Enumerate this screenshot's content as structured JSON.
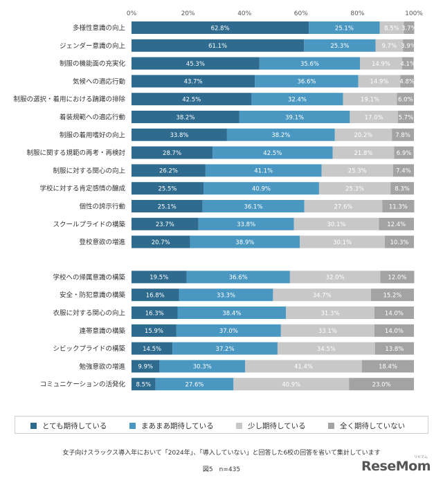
{
  "chart_data": {
    "type": "bar",
    "orientation": "horizontal",
    "stacked": true,
    "percent": true,
    "xlim": [
      0,
      100
    ],
    "x_ticks": [
      "0%",
      "20%",
      "40%",
      "60%",
      "80%",
      "100%"
    ],
    "grid": false,
    "legend_position": "bottom",
    "categories": [
      "多様性意識の向上",
      "ジェンダー意識の向上",
      "制服の機能面の充実化",
      "気候への適応行動",
      "制服の選択・着用における躊躇の排除",
      "着装規範への適応行動",
      "制服の着用嗜好の向上",
      "制服に関する規範の再考・再検討",
      "制服に対する関心の向上",
      "学校に対する肯定感情の醸成",
      "個性の誇示行動",
      "スクールプライドの構築",
      "登校意欲の増進",
      "学校への帰属意識の構築",
      "安全・防犯意識の構築",
      "衣服に対する関心の向上",
      "連帯意識の構築",
      "シビックプライドの構築",
      "勉強意欲の増進",
      "コミュニケーションの活発化"
    ],
    "group_sizes": [
      13,
      7
    ],
    "series": [
      {
        "name": "とても期待している",
        "color": "#2e6b8e",
        "values": [
          62.8,
          61.1,
          45.3,
          43.7,
          42.5,
          38.2,
          33.8,
          28.7,
          26.2,
          25.5,
          25.1,
          23.7,
          20.7,
          19.5,
          16.8,
          16.3,
          15.9,
          14.5,
          9.9,
          8.5
        ],
        "labels": [
          "62.8%",
          "61.1%",
          "45.3%",
          "43.7%",
          "42.5%",
          "38.2%",
          "33.8%",
          "28.7%",
          "26.2%",
          "25.5%",
          "25.1%",
          "23.7%",
          "20.7%",
          "19.5%",
          "16.8%",
          "16.3%",
          "15.9%",
          "14.5%",
          "9.9%",
          "8.5%"
        ]
      },
      {
        "name": "まあまあ期待している",
        "color": "#4a98c2",
        "values": [
          25.1,
          25.3,
          35.6,
          36.6,
          32.4,
          39.1,
          38.2,
          42.5,
          41.1,
          40.9,
          36.1,
          33.8,
          38.9,
          36.6,
          33.3,
          38.4,
          37.0,
          37.2,
          30.3,
          27.6
        ],
        "labels": [
          "25.1%",
          "25.3%",
          "35.6%",
          "36.6%",
          "32.4%",
          "39.1%",
          "38.2%",
          "42.5%",
          "41.1%",
          "40.9%",
          "36.1%",
          "33.8%",
          "38.9%",
          "36.6%",
          "33.3%",
          "38.4%",
          "37.0%",
          "37.2%",
          "30.3%",
          "27.6%"
        ]
      },
      {
        "name": "少し期待している",
        "color": "#c8c8c8",
        "values": [
          8.5,
          9.7,
          14.9,
          14.9,
          19.1,
          17.0,
          20.2,
          21.8,
          25.3,
          25.3,
          27.6,
          30.1,
          30.1,
          32.0,
          34.7,
          31.3,
          33.1,
          34.5,
          41.4,
          40.9
        ],
        "labels": [
          "8.5%",
          "9.7%",
          "14.9%",
          "14.9%",
          "19.1%",
          "17.0%",
          "20.2%",
          "21.8%",
          "25.3%",
          "25.3%",
          "27.6%",
          "30.1%",
          "30.1%",
          "32.0%",
          "34.7%",
          "31.3%",
          "33.1%",
          "34.5%",
          "41.4%",
          "40.9%"
        ]
      },
      {
        "name": "全く期待していない",
        "color": "#a3a3a3",
        "values": [
          3.7,
          3.9,
          4.1,
          4.8,
          6.0,
          5.7,
          7.8,
          6.9,
          7.4,
          8.3,
          11.3,
          12.4,
          10.3,
          12.0,
          15.2,
          14.0,
          14.0,
          13.8,
          18.4,
          23.0
        ],
        "labels": [
          "3.7%",
          "3.9%",
          "4.1%",
          "4.8%",
          "6.0%",
          "5.7%",
          "7.8%",
          "6.9%",
          "7.4%",
          "8.3%",
          "11.3%",
          "12.4%",
          "10.3%",
          "12.0%",
          "15.2%",
          "14.0%",
          "14.0%",
          "13.8%",
          "18.4%",
          "23.0%"
        ]
      }
    ]
  },
  "legend": [
    {
      "label": "とても期待している",
      "color": "#2e6b8e"
    },
    {
      "label": "まあまあ期待している",
      "color": "#4a98c2"
    },
    {
      "label": "少し期待している",
      "color": "#c8c8c8"
    },
    {
      "label": "全く期待していない",
      "color": "#a3a3a3"
    }
  ],
  "note": "女子向けスラックス導入年において「2024年」、「導入していない」と回答した6校の回答を省いて集計しています",
  "caption": "図5　n=435",
  "logo": {
    "text": "ReseMom",
    "sub": "リセマム"
  }
}
